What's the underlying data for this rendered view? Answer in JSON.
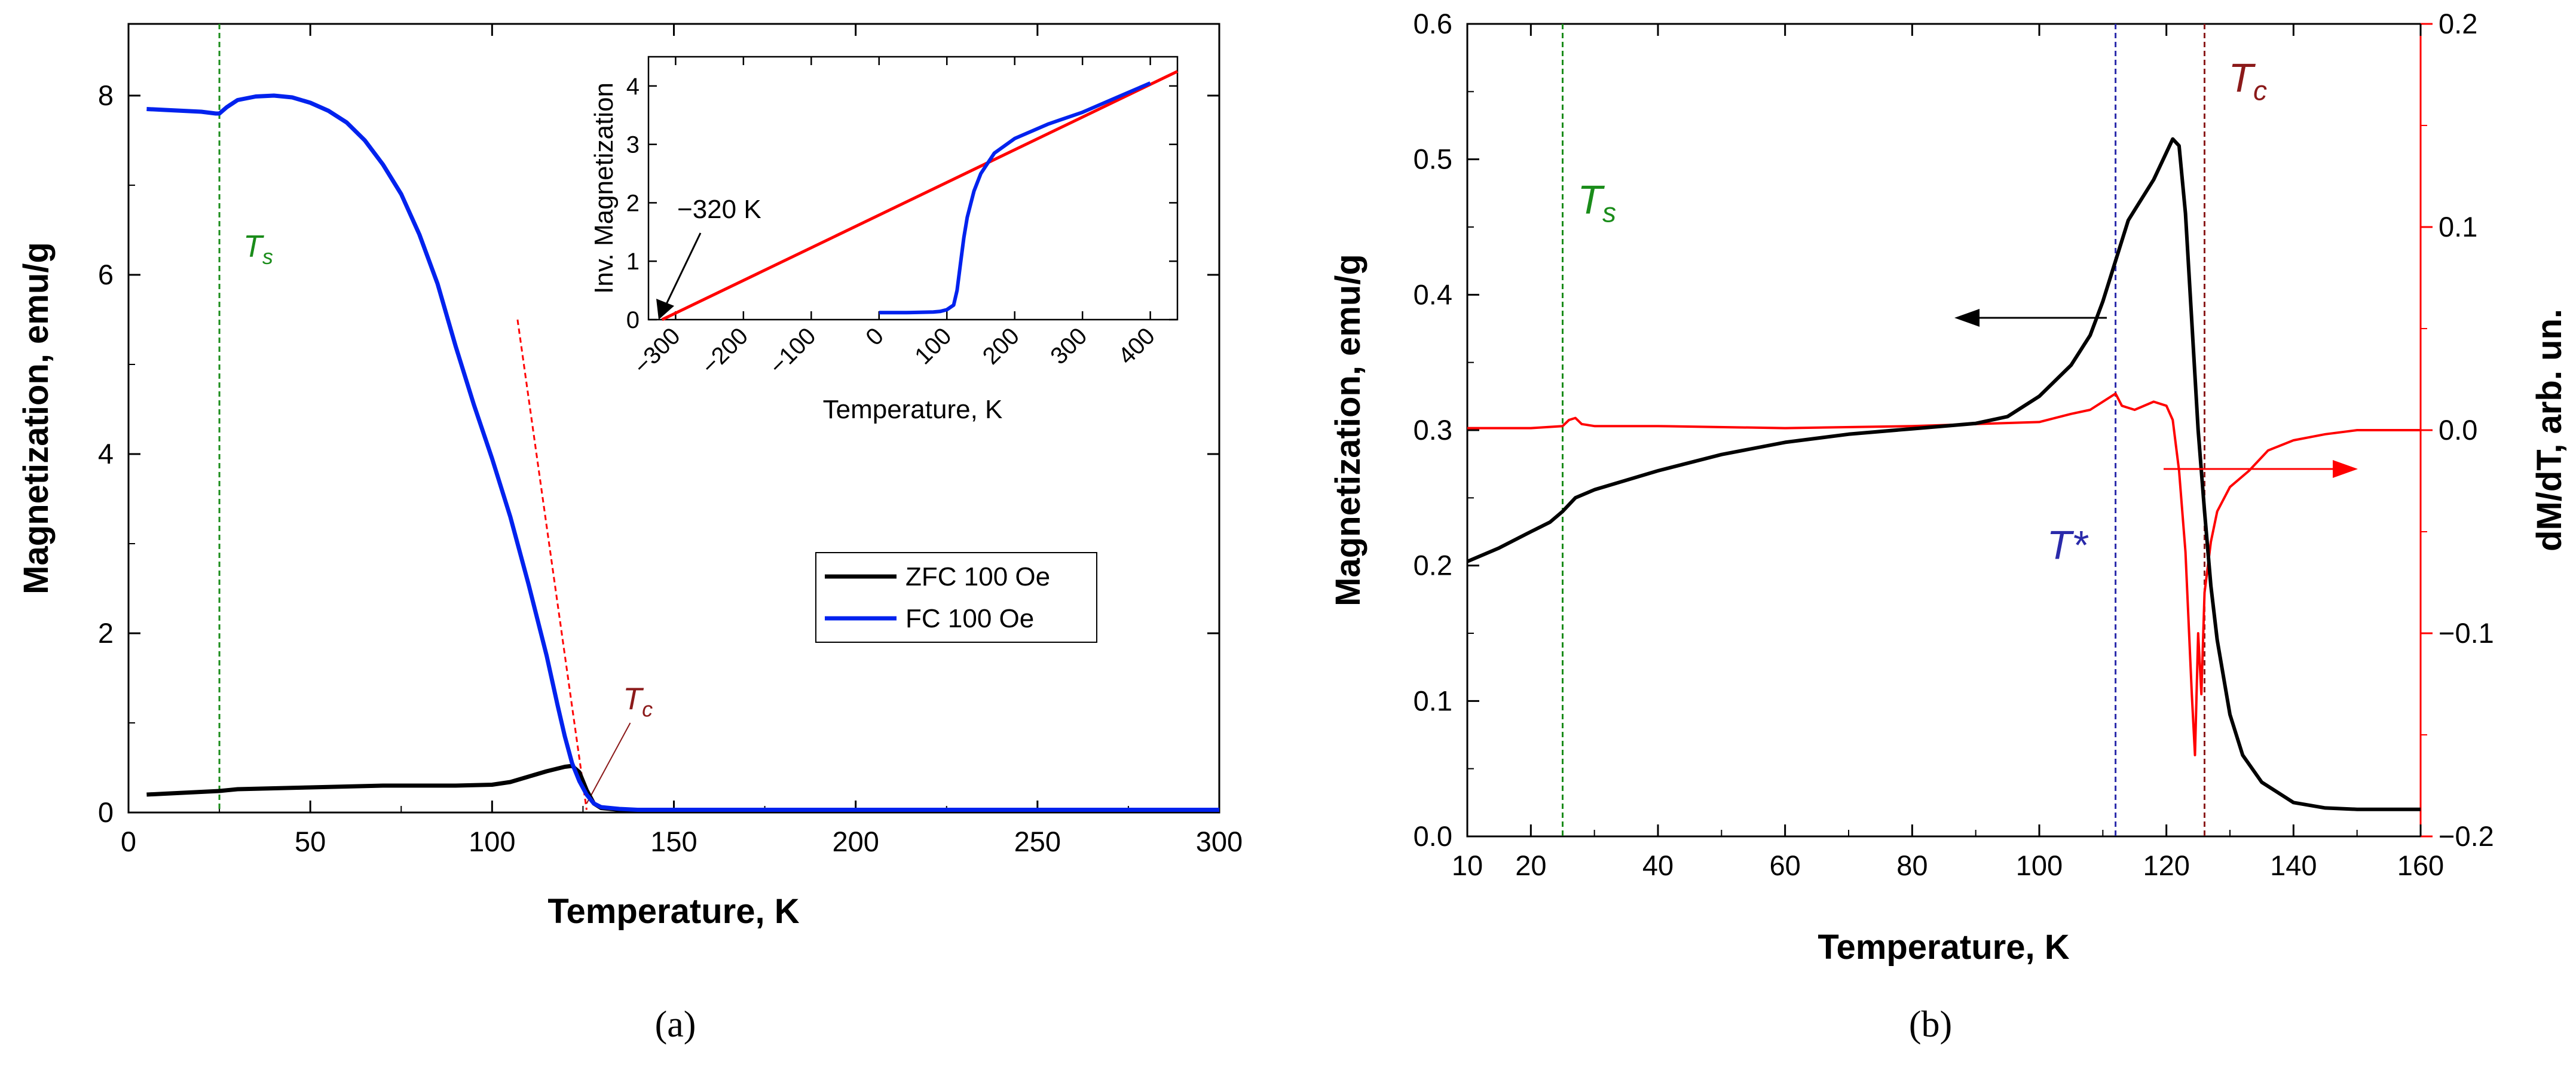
{
  "colors": {
    "zfc": "#000000",
    "fc": "#0022ee",
    "ts": "#1a8c1a",
    "tc": "#8b1a1a",
    "tstar": "#2a2aaa",
    "deriv": "#ff0000",
    "fit": "#ff0000"
  },
  "panels": {
    "a_label": "(a)",
    "b_label": "(b)"
  },
  "chart_data": [
    {
      "id": "a",
      "type": "line",
      "xlabel": "Temperature, K",
      "ylabel": "Magnetization, emu/g",
      "xlim": [
        0,
        300
      ],
      "ylim": [
        0,
        8.8
      ],
      "xticks": [
        0,
        50,
        100,
        150,
        200,
        250,
        300
      ],
      "yticks": [
        0,
        2,
        4,
        6,
        8
      ],
      "legend": {
        "position": "right-middle",
        "entries": [
          "ZFC 100 Oe",
          "FC 100 Oe"
        ]
      },
      "series": [
        {
          "name": "ZFC 100 Oe",
          "color": "#000000",
          "x": [
            5,
            10,
            20,
            25,
            30,
            40,
            50,
            60,
            70,
            80,
            90,
            100,
            105,
            110,
            115,
            118,
            120,
            122,
            124,
            126,
            128,
            130,
            135,
            140,
            150,
            200,
            250,
            300
          ],
          "y": [
            0.2,
            0.21,
            0.23,
            0.24,
            0.26,
            0.27,
            0.28,
            0.29,
            0.3,
            0.3,
            0.3,
            0.31,
            0.34,
            0.4,
            0.46,
            0.49,
            0.51,
            0.52,
            0.45,
            0.25,
            0.1,
            0.05,
            0.03,
            0.02,
            0.02,
            0.02,
            0.02,
            0.02
          ]
        },
        {
          "name": "FC 100 Oe",
          "color": "#0022ee",
          "x": [
            5,
            10,
            15,
            20,
            24,
            25,
            27,
            30,
            35,
            40,
            45,
            50,
            55,
            60,
            65,
            70,
            75,
            80,
            85,
            90,
            95,
            100,
            105,
            110,
            115,
            118,
            120,
            122,
            124,
            126,
            128,
            130,
            135,
            140,
            150,
            200,
            250,
            300
          ],
          "y": [
            7.85,
            7.84,
            7.83,
            7.82,
            7.8,
            7.8,
            7.87,
            7.95,
            7.99,
            8.0,
            7.98,
            7.92,
            7.83,
            7.7,
            7.5,
            7.23,
            6.9,
            6.45,
            5.9,
            5.2,
            4.55,
            3.95,
            3.3,
            2.55,
            1.75,
            1.2,
            0.85,
            0.55,
            0.35,
            0.2,
            0.1,
            0.06,
            0.04,
            0.03,
            0.03,
            0.03,
            0.03,
            0.03
          ]
        }
      ],
      "annotations": [
        {
          "label": "T",
          "sub": "s",
          "x": 25,
          "kind": "vline"
        },
        {
          "label": "T",
          "sub": "c",
          "x": 126,
          "kind": "tangent"
        }
      ],
      "inset": {
        "type": "line",
        "xlabel": "Temperature, K",
        "ylabel": "Inv. Magnetization",
        "xlim": [
          -340,
          440
        ],
        "ylim": [
          0,
          4.5
        ],
        "xticks": [
          -300,
          -200,
          -100,
          0,
          100,
          200,
          300,
          400
        ],
        "xtick_labels": [
          "−300",
          "−200",
          "−100",
          "0",
          "100",
          "200",
          "300",
          "400"
        ],
        "yticks": [
          0,
          1,
          2,
          3,
          4
        ],
        "annotation": "−320 K",
        "fit_line": {
          "x": [
            -320,
            440
          ],
          "y": [
            0,
            4.25
          ]
        },
        "series": {
          "x": [
            0,
            40,
            80,
            90,
            100,
            110,
            115,
            120,
            125,
            130,
            140,
            150,
            170,
            200,
            250,
            300,
            350,
            400
          ],
          "y": [
            0.12,
            0.12,
            0.13,
            0.14,
            0.17,
            0.25,
            0.5,
            0.95,
            1.4,
            1.75,
            2.2,
            2.5,
            2.85,
            3.1,
            3.35,
            3.55,
            3.8,
            4.05
          ]
        }
      }
    },
    {
      "id": "b",
      "type": "line",
      "xlabel": "Temperature, K",
      "ylabel": "Magnetization, emu/g",
      "ylabel2": "dM/dT, arb. un.",
      "xlim": [
        10,
        160
      ],
      "ylim": [
        0,
        0.6
      ],
      "ylim2": [
        -0.2,
        0.2
      ],
      "xticks": [
        10,
        20,
        40,
        60,
        80,
        100,
        120,
        140,
        160
      ],
      "yticks": [
        0.0,
        0.1,
        0.2,
        0.3,
        0.4,
        0.5,
        0.6
      ],
      "yticks2": [
        -0.2,
        -0.1,
        0.0,
        0.1,
        0.2
      ],
      "series": [
        {
          "name": "Magnetization",
          "axis": "left",
          "color": "#000000",
          "x": [
            10,
            15,
            20,
            23,
            25,
            27,
            30,
            35,
            40,
            50,
            60,
            70,
            80,
            90,
            95,
            100,
            105,
            108,
            110,
            112,
            114,
            116,
            118,
            120,
            121,
            122,
            123,
            124,
            125,
            126,
            127,
            128,
            130,
            132,
            135,
            140,
            145,
            150,
            155,
            160
          ],
          "y": [
            0.203,
            0.213,
            0.225,
            0.232,
            0.24,
            0.25,
            0.256,
            0.263,
            0.27,
            0.282,
            0.291,
            0.297,
            0.301,
            0.305,
            0.31,
            0.325,
            0.348,
            0.37,
            0.395,
            0.425,
            0.455,
            0.47,
            0.485,
            0.505,
            0.515,
            0.51,
            0.46,
            0.38,
            0.3,
            0.24,
            0.185,
            0.145,
            0.09,
            0.06,
            0.04,
            0.025,
            0.021,
            0.02,
            0.02,
            0.02
          ]
        },
        {
          "name": "dM/dT",
          "axis": "right",
          "color": "#ff0000",
          "x": [
            10,
            20,
            25,
            26,
            27,
            28,
            30,
            40,
            60,
            80,
            100,
            105,
            108,
            110,
            112,
            113,
            115,
            118,
            120,
            121,
            122,
            123,
            124,
            124.5,
            125,
            125.5,
            126,
            127,
            128,
            130,
            133,
            136,
            140,
            145,
            150,
            160
          ],
          "y": [
            0.001,
            0.001,
            0.002,
            0.005,
            0.006,
            0.003,
            0.002,
            0.002,
            0.001,
            0.002,
            0.004,
            0.008,
            0.01,
            0.014,
            0.018,
            0.012,
            0.01,
            0.014,
            0.012,
            0.005,
            -0.02,
            -0.06,
            -0.13,
            -0.16,
            -0.1,
            -0.13,
            -0.08,
            -0.055,
            -0.04,
            -0.028,
            -0.02,
            -0.01,
            -0.005,
            -0.002,
            0.0,
            0.0
          ]
        }
      ],
      "annotations": [
        {
          "label": "T",
          "sub": "s",
          "x": 25,
          "kind": "vline"
        },
        {
          "label": "T*",
          "x": 112,
          "kind": "vline"
        },
        {
          "label": "T",
          "sub": "c",
          "x": 126,
          "kind": "vline"
        }
      ]
    }
  ]
}
